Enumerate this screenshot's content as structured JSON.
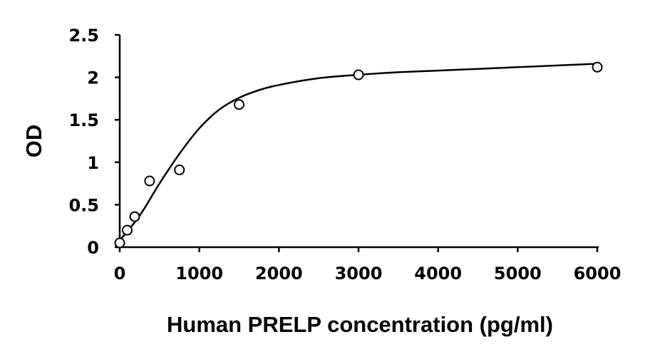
{
  "chart_data": {
    "type": "scatter",
    "title": "",
    "xlabel": "Human PRELP concentration (pg/ml)",
    "ylabel": "OD",
    "xlim": [
      0,
      6000
    ],
    "ylim": [
      0,
      2.5
    ],
    "xticks": [
      0,
      1000,
      2000,
      3000,
      4000,
      5000,
      6000
    ],
    "xtick_labels": [
      "0",
      "1000",
      "2000",
      "3000",
      "4000",
      "5000",
      "6000"
    ],
    "yticks": [
      0,
      0.5,
      1,
      1.5,
      2,
      2.5
    ],
    "ytick_labels": [
      "0",
      "0.5",
      "1",
      "1.5",
      "2",
      "2.5"
    ],
    "grid": false,
    "legend": "none",
    "series": [
      {
        "marker": "open-circle",
        "x": [
          0,
          94,
          188,
          375,
          750,
          1500,
          3000,
          6000
        ],
        "y": [
          0.05,
          0.2,
          0.36,
          0.78,
          0.91,
          1.68,
          2.03,
          2.12
        ]
      }
    ],
    "fit_curve": {
      "type": "smooth",
      "x": [
        0,
        250,
        500,
        750,
        1000,
        1250,
        1500,
        1750,
        2000,
        2500,
        3000,
        3500,
        4000,
        4500,
        5000,
        5500,
        6000
      ],
      "y": [
        0.08,
        0.37,
        0.75,
        1.1,
        1.4,
        1.62,
        1.76,
        1.85,
        1.91,
        1.99,
        2.03,
        2.06,
        2.08,
        2.1,
        2.12,
        2.14,
        2.16
      ]
    }
  }
}
